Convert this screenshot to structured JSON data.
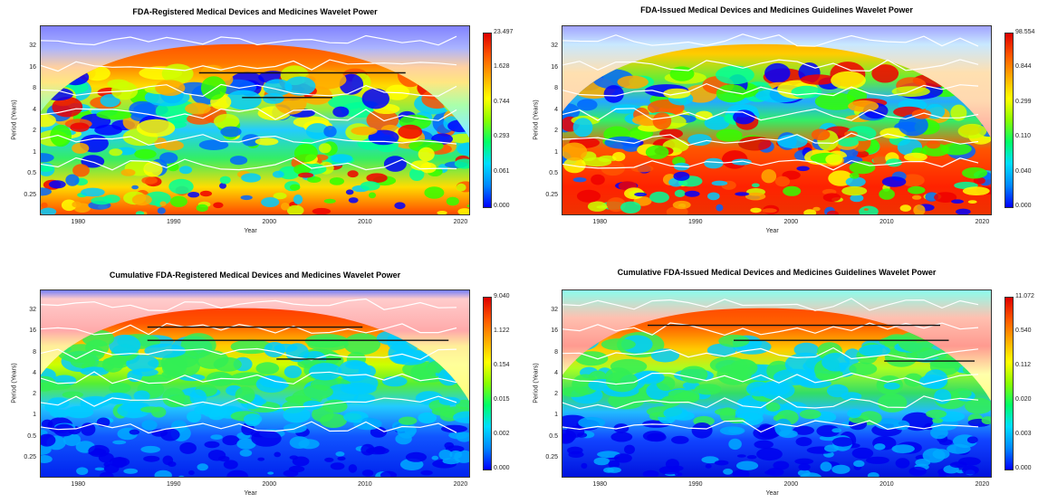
{
  "chart_data": [
    {
      "type": "heatmap",
      "title": "FDA-Registered Medical Devices and Medicines Wavelet Power",
      "xlabel": "Year",
      "ylabel": "Period (Years)",
      "x_ticks": [
        "1980",
        "1990",
        "2000",
        "2010",
        "2020"
      ],
      "y_ticks": [
        "32",
        "16",
        "8",
        "4",
        "2",
        "1",
        "0.5",
        "0.25"
      ],
      "xlim": [
        1976,
        2021
      ],
      "colorbar": {
        "labels": [
          "23.497",
          "1.628",
          "0.744",
          "0.293",
          "0.061",
          "0.000"
        ]
      },
      "variant": "local"
    },
    {
      "type": "heatmap",
      "title": "FDA-Issued Medical Devices and Medicines Guidelines Wavelet Power",
      "xlabel": "Year",
      "ylabel": "Period (Years)",
      "x_ticks": [
        "1980",
        "1990",
        "2000",
        "2010",
        "2020"
      ],
      "y_ticks": [
        "32",
        "16",
        "8",
        "4",
        "2",
        "1",
        "0.5",
        "0.25"
      ],
      "xlim": [
        1976,
        2021
      ],
      "colorbar": {
        "labels": [
          "98.554",
          "0.844",
          "0.299",
          "0.110",
          "0.040",
          "0.000"
        ]
      },
      "variant": "local2"
    },
    {
      "type": "heatmap",
      "title": "Cumulative FDA-Registered Medical Devices and Medicines Wavelet Power",
      "xlabel": "Year",
      "ylabel": "Period (Years)",
      "x_ticks": [
        "1980",
        "1990",
        "2000",
        "2010",
        "2020"
      ],
      "y_ticks": [
        "32",
        "16",
        "8",
        "4",
        "2",
        "1",
        "0.5",
        "0.25"
      ],
      "xlim": [
        1976,
        2021
      ],
      "colorbar": {
        "labels": [
          "9.040",
          "1.122",
          "0.154",
          "0.015",
          "0.002",
          "0.000"
        ]
      },
      "variant": "cumulative"
    },
    {
      "type": "heatmap",
      "title": "Cumulative FDA-Issued Medical Devices and Medicines Guidelines Wavelet Power",
      "xlabel": "Year",
      "ylabel": "Period (Years)",
      "x_ticks": [
        "1980",
        "1990",
        "2000",
        "2010",
        "2020"
      ],
      "y_ticks": [
        "32",
        "16",
        "8",
        "4",
        "2",
        "1",
        "0.5",
        "0.25"
      ],
      "xlim": [
        1976,
        2021
      ],
      "colorbar": {
        "labels": [
          "11.072",
          "0.540",
          "0.112",
          "0.020",
          "0.003",
          "0.000"
        ]
      },
      "variant": "cumulative2"
    }
  ]
}
